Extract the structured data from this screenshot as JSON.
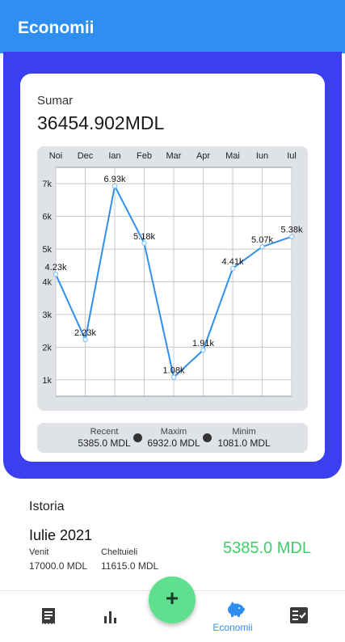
{
  "appbar": {
    "title": "Economii"
  },
  "summary": {
    "label": "Sumar",
    "total": "36454.902MDL"
  },
  "chart_data": {
    "type": "line",
    "categories": [
      "Noi",
      "Dec",
      "Ian",
      "Feb",
      "Mar",
      "Apr",
      "Mai",
      "Iun",
      "Iul"
    ],
    "values": [
      4.23,
      2.23,
      6.93,
      5.18,
      1.08,
      1.91,
      4.41,
      5.07,
      5.38
    ],
    "point_labels": [
      "4.23k",
      "2.23k",
      "6.93k",
      "5.18k",
      "1.08k",
      "1.91k",
      "4.41k",
      "5.07k",
      "5.38k"
    ],
    "ytick_labels": [
      "1k",
      "2k",
      "3k",
      "4k",
      "5k",
      "6k",
      "7k"
    ],
    "yticks": [
      1,
      2,
      3,
      4,
      5,
      6,
      7
    ],
    "ylim": [
      0.5,
      7.5
    ],
    "grid": true,
    "line_color": "#2f8ff0"
  },
  "stats": {
    "recent_label": "Recent",
    "recent_value": "5385.0 MDL",
    "max_label": "Maxim",
    "max_value": "6932.0 MDL",
    "min_label": "Minim",
    "min_value": "1081.0 MDL"
  },
  "history": {
    "title": "Istoria",
    "month": "Iulie 2021",
    "income_label": "Venit",
    "income_value": "17000.0 MDL",
    "expense_label": "Cheltuieli",
    "expense_value": "11615.0 MDL",
    "balance": "5385.0 MDL"
  },
  "nav": {
    "items": [
      {
        "icon": "receipt-icon"
      },
      {
        "icon": "bar-chart-icon"
      },
      {
        "icon": "piggy-bank-icon",
        "label": "Economii",
        "active": true
      },
      {
        "icon": "checklist-icon"
      }
    ]
  },
  "fab": {
    "icon": "plus-icon",
    "symbol": "+"
  },
  "colors": {
    "appbar": "#2f8ff0",
    "panel": "#3b3ff0",
    "positive": "#3dcf68",
    "fab": "#5ee08f"
  }
}
